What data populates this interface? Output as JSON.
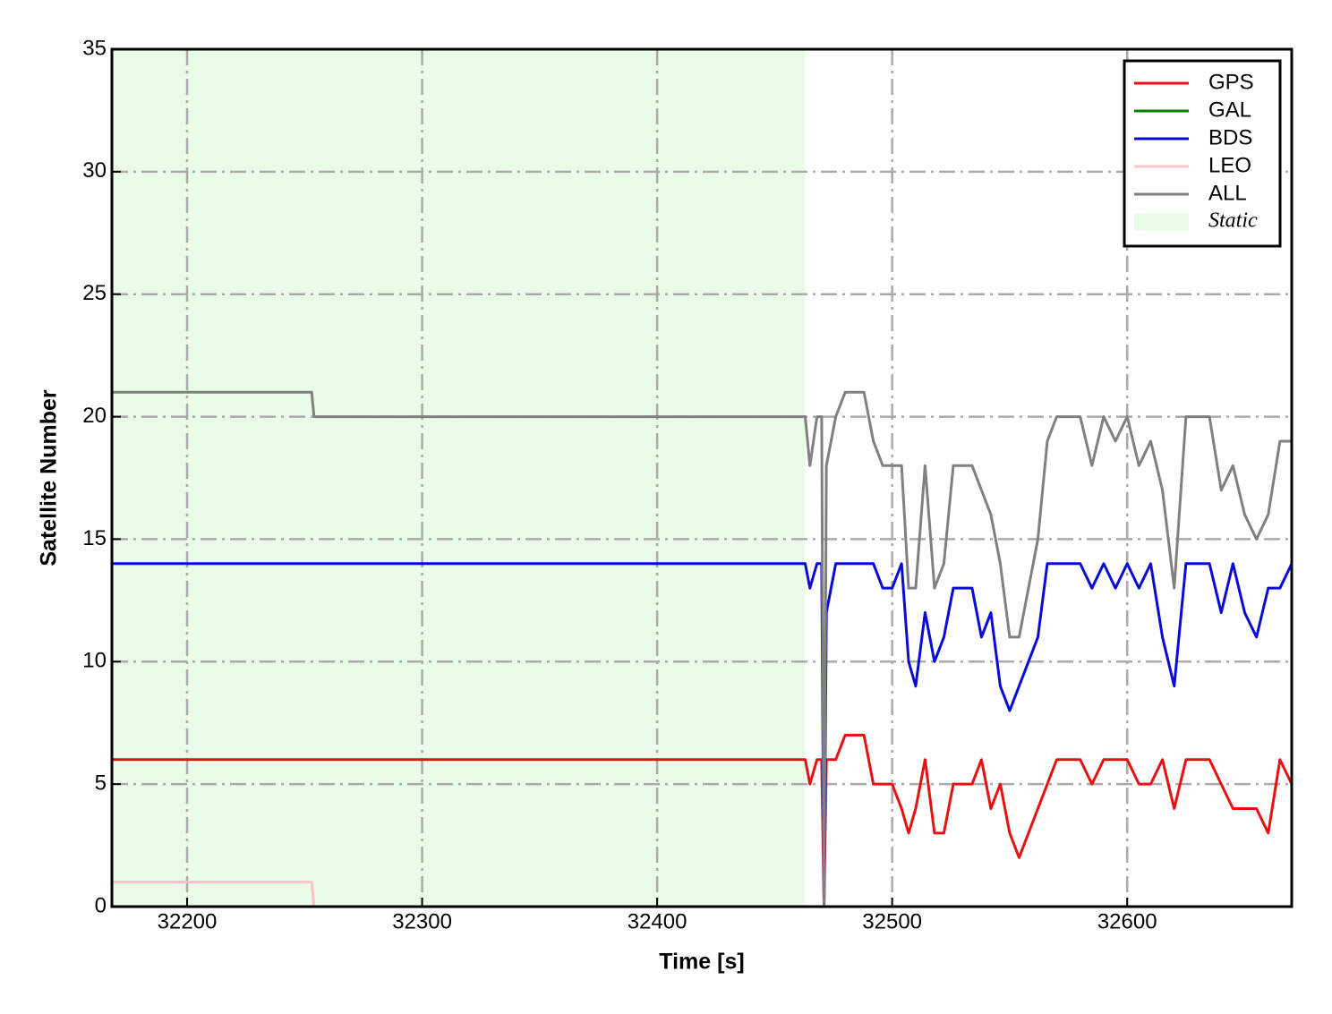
{
  "chart_data": {
    "type": "line",
    "xlabel": "Time [s]",
    "ylabel": "Satellite Number",
    "xlim": [
      32168,
      32670
    ],
    "ylim": [
      0,
      35
    ],
    "xticks": [
      32200,
      32300,
      32400,
      32500,
      32600
    ],
    "yticks": [
      0,
      5,
      10,
      15,
      20,
      25,
      30,
      35
    ],
    "grid": true,
    "legend": "upper right",
    "shaded": {
      "label": "Static",
      "x0": 32168,
      "x1": 32463,
      "color": "#e8fce8"
    },
    "x": [
      32168,
      32253,
      32254,
      32463,
      32465,
      32468,
      32470,
      32471,
      32472,
      32474,
      32476,
      32480,
      32485,
      32488,
      32490,
      32492,
      32496,
      32500,
      32504,
      32507,
      32510,
      32514,
      32518,
      32522,
      32526,
      32530,
      32534,
      32538,
      32542,
      32546,
      32550,
      32554,
      32558,
      32562,
      32566,
      32570,
      32575,
      32580,
      32585,
      32590,
      32595,
      32600,
      32605,
      32610,
      32615,
      32620,
      32625,
      32630,
      32635,
      32640,
      32645,
      32650,
      32655,
      32660,
      32665,
      32670
    ],
    "series": [
      {
        "name": "GPS",
        "color": "#e81010",
        "values": [
          6,
          6,
          6,
          6,
          5,
          6,
          6,
          0,
          6,
          6,
          6,
          7,
          7,
          7,
          6,
          5,
          5,
          5,
          4,
          3,
          4,
          6,
          3,
          3,
          5,
          5,
          5,
          6,
          4,
          5,
          3,
          2,
          3,
          4,
          5,
          6,
          6,
          6,
          5,
          6,
          6,
          6,
          5,
          5,
          6,
          4,
          6,
          6,
          6,
          5,
          4,
          4,
          4,
          3,
          6,
          5
        ]
      },
      {
        "name": "GAL",
        "color": "#008000",
        "values": [
          0,
          0,
          null,
          null,
          null,
          null,
          null,
          null,
          null,
          null,
          null,
          null,
          null,
          null,
          null,
          null,
          null,
          null,
          null,
          null,
          null,
          null,
          null,
          null,
          null,
          null,
          null,
          null,
          null,
          null,
          null,
          null,
          null,
          null,
          null,
          null,
          null,
          null,
          null,
          null,
          null,
          null,
          null,
          null,
          null,
          null,
          null,
          null,
          null,
          null,
          null,
          null,
          null,
          null,
          null,
          null
        ]
      },
      {
        "name": "BDS",
        "color": "#0a0ad8",
        "values": [
          14,
          14,
          14,
          14,
          13,
          14,
          14,
          0,
          12,
          13,
          14,
          14,
          14,
          14,
          14,
          14,
          13,
          13,
          14,
          10,
          9,
          12,
          10,
          11,
          13,
          13,
          13,
          11,
          12,
          9,
          8,
          9,
          10,
          11,
          14,
          14,
          14,
          14,
          13,
          14,
          13,
          14,
          13,
          14,
          11,
          9,
          14,
          14,
          14,
          12,
          14,
          12,
          11,
          13,
          13,
          14
        ]
      },
      {
        "name": "LEO",
        "color": "#ffc0cb",
        "values": [
          1,
          1,
          0,
          null,
          null,
          null,
          null,
          null,
          null,
          null,
          null,
          null,
          null,
          null,
          null,
          null,
          null,
          null,
          null,
          null,
          null,
          null,
          null,
          null,
          null,
          null,
          null,
          null,
          null,
          null,
          null,
          null,
          null,
          null,
          null,
          null,
          null,
          null,
          null,
          null,
          null,
          null,
          null,
          null,
          null,
          null,
          null,
          null,
          null,
          null,
          null,
          null,
          null,
          null,
          null,
          null
        ]
      },
      {
        "name": "ALL",
        "color": "#808080",
        "values": [
          21,
          21,
          20,
          20,
          18,
          20,
          20,
          0,
          18,
          19,
          20,
          21,
          21,
          21,
          20,
          19,
          18,
          18,
          18,
          13,
          13,
          18,
          13,
          14,
          18,
          18,
          18,
          17,
          16,
          14,
          11,
          11,
          13,
          15,
          19,
          20,
          20,
          20,
          18,
          20,
          19,
          20,
          18,
          19,
          17,
          13,
          20,
          20,
          20,
          17,
          18,
          16,
          15,
          16,
          19,
          19
        ]
      }
    ]
  }
}
